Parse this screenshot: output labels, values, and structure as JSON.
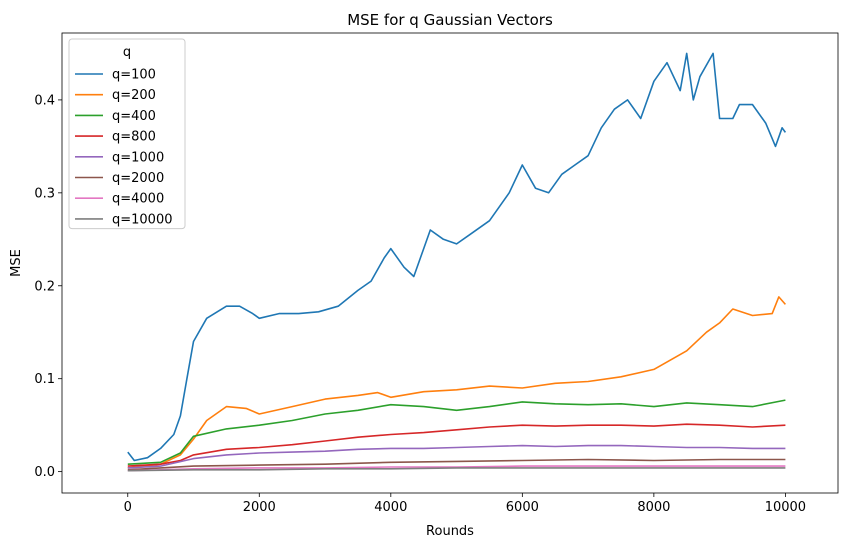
{
  "chart_data": {
    "type": "line",
    "title": "MSE for q Gaussian Vectors",
    "xlabel": "Rounds",
    "ylabel": "MSE",
    "xlim": [
      -1000,
      10800
    ],
    "ylim": [
      -0.023,
      0.472
    ],
    "xticks": [
      0,
      2000,
      4000,
      6000,
      8000,
      10000
    ],
    "xtick_labels": [
      "0",
      "2000",
      "4000",
      "6000",
      "8000",
      "10000"
    ],
    "yticks": [
      0.0,
      0.1,
      0.2,
      0.3,
      0.4
    ],
    "ytick_labels": [
      "0.0",
      "0.1",
      "0.2",
      "0.3",
      "0.4"
    ],
    "grid": false,
    "legend": {
      "title": "q",
      "position": "top-left"
    },
    "series": [
      {
        "name": "q=100",
        "color": "#1f77b4",
        "x": [
          0,
          100,
          300,
          500,
          700,
          800,
          900,
          1000,
          1200,
          1500,
          1700,
          1900,
          2000,
          2300,
          2600,
          2900,
          3200,
          3500,
          3700,
          3900,
          4000,
          4200,
          4350,
          4500,
          4600,
          4800,
          5000,
          5200,
          5500,
          5800,
          6000,
          6200,
          6400,
          6600,
          6800,
          7000,
          7200,
          7400,
          7600,
          7800,
          8000,
          8200,
          8400,
          8500,
          8600,
          8700,
          8900,
          9000,
          9100,
          9200,
          9300,
          9500,
          9700,
          9850,
          9950,
          10000
        ],
        "y": [
          0.021,
          0.012,
          0.015,
          0.025,
          0.04,
          0.06,
          0.1,
          0.14,
          0.165,
          0.178,
          0.178,
          0.17,
          0.165,
          0.17,
          0.17,
          0.172,
          0.178,
          0.195,
          0.205,
          0.23,
          0.24,
          0.22,
          0.21,
          0.24,
          0.26,
          0.25,
          0.245,
          0.255,
          0.27,
          0.3,
          0.33,
          0.305,
          0.3,
          0.32,
          0.33,
          0.34,
          0.37,
          0.39,
          0.4,
          0.38,
          0.42,
          0.44,
          0.41,
          0.45,
          0.4,
          0.425,
          0.45,
          0.38,
          0.38,
          0.38,
          0.395,
          0.395,
          0.375,
          0.35,
          0.37,
          0.365
        ]
      },
      {
        "name": "q=200",
        "color": "#ff7f0e",
        "x": [
          0,
          500,
          800,
          1000,
          1200,
          1500,
          1800,
          2000,
          2500,
          3000,
          3500,
          3800,
          4000,
          4500,
          5000,
          5500,
          6000,
          6500,
          7000,
          7500,
          8000,
          8500,
          8800,
          9000,
          9200,
          9500,
          9800,
          9900,
          10000
        ],
        "y": [
          0.004,
          0.008,
          0.018,
          0.035,
          0.055,
          0.07,
          0.068,
          0.062,
          0.07,
          0.078,
          0.082,
          0.085,
          0.08,
          0.086,
          0.088,
          0.092,
          0.09,
          0.095,
          0.097,
          0.102,
          0.11,
          0.13,
          0.15,
          0.16,
          0.175,
          0.168,
          0.17,
          0.188,
          0.18
        ]
      },
      {
        "name": "q=400",
        "color": "#2ca02c",
        "x": [
          0,
          500,
          800,
          1000,
          1500,
          2000,
          2500,
          3000,
          3500,
          4000,
          4500,
          5000,
          5500,
          6000,
          6500,
          7000,
          7500,
          8000,
          8500,
          9000,
          9500,
          10000
        ],
        "y": [
          0.008,
          0.01,
          0.02,
          0.038,
          0.046,
          0.05,
          0.055,
          0.062,
          0.066,
          0.072,
          0.07,
          0.066,
          0.07,
          0.075,
          0.073,
          0.072,
          0.073,
          0.07,
          0.074,
          0.072,
          0.07,
          0.077
        ]
      },
      {
        "name": "q=800",
        "color": "#d62728",
        "x": [
          0,
          500,
          800,
          1000,
          1500,
          2000,
          2500,
          3000,
          3500,
          4000,
          4500,
          5000,
          5500,
          6000,
          6500,
          7000,
          7500,
          8000,
          8500,
          9000,
          9500,
          10000
        ],
        "y": [
          0.006,
          0.008,
          0.012,
          0.018,
          0.024,
          0.026,
          0.029,
          0.033,
          0.037,
          0.04,
          0.042,
          0.045,
          0.048,
          0.05,
          0.049,
          0.05,
          0.05,
          0.049,
          0.051,
          0.05,
          0.048,
          0.05
        ]
      },
      {
        "name": "q=1000",
        "color": "#9467bd",
        "x": [
          0,
          500,
          1000,
          1500,
          2000,
          2500,
          3000,
          3500,
          4000,
          4500,
          5000,
          5500,
          6000,
          6500,
          7000,
          7500,
          8000,
          8500,
          9000,
          9500,
          10000
        ],
        "y": [
          0.004,
          0.006,
          0.014,
          0.018,
          0.02,
          0.021,
          0.022,
          0.024,
          0.025,
          0.025,
          0.026,
          0.027,
          0.028,
          0.027,
          0.028,
          0.028,
          0.027,
          0.026,
          0.026,
          0.025,
          0.025
        ]
      },
      {
        "name": "q=2000",
        "color": "#8c564b",
        "x": [
          0,
          500,
          1000,
          2000,
          3000,
          4000,
          5000,
          6000,
          7000,
          8000,
          9000,
          10000
        ],
        "y": [
          0.002,
          0.004,
          0.006,
          0.007,
          0.008,
          0.01,
          0.011,
          0.012,
          0.013,
          0.012,
          0.013,
          0.013
        ]
      },
      {
        "name": "q=4000",
        "color": "#e377c2",
        "x": [
          0,
          500,
          1000,
          2000,
          3000,
          4000,
          5000,
          6000,
          7000,
          8000,
          9000,
          10000
        ],
        "y": [
          0.001,
          0.002,
          0.003,
          0.004,
          0.004,
          0.005,
          0.005,
          0.006,
          0.006,
          0.006,
          0.006,
          0.006
        ]
      },
      {
        "name": "q=10000",
        "color": "#7f7f7f",
        "x": [
          0,
          1000,
          2000,
          3000,
          4000,
          5000,
          6000,
          7000,
          8000,
          9000,
          10000
        ],
        "y": [
          0.001,
          0.002,
          0.002,
          0.003,
          0.003,
          0.004,
          0.004,
          0.004,
          0.004,
          0.004,
          0.004
        ]
      }
    ]
  }
}
